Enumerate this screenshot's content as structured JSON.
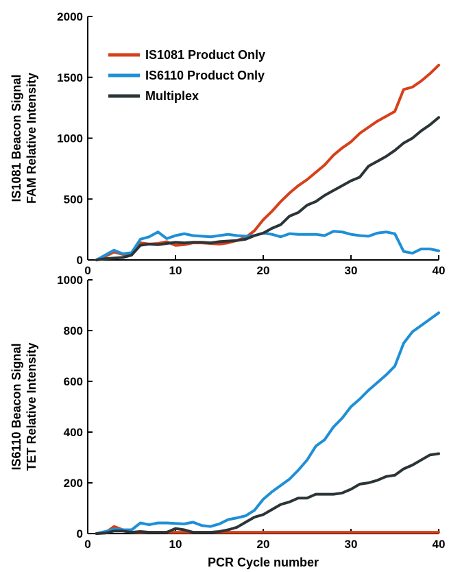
{
  "chart_data": [
    {
      "type": "line",
      "ylabel": [
        "IS1081 Beacon Signal",
        "FAM Relative Intensity"
      ],
      "xlabel": "",
      "xlim": [
        0,
        40
      ],
      "ylim": [
        0,
        2000
      ],
      "xticks": [
        "0",
        "10",
        "20",
        "30",
        "40"
      ],
      "yticks": [
        "0",
        "500",
        "1000",
        "1500",
        "2000"
      ],
      "legend_position": "top-left",
      "legend": [
        "IS1081 Product Only",
        "IS6110 Product Only",
        "Multiplex"
      ],
      "series": [
        {
          "name": "IS1081 Product Only",
          "color": "#d6401a",
          "x": [
            1,
            2,
            3,
            4,
            5,
            6,
            7,
            8,
            9,
            10,
            11,
            12,
            13,
            14,
            15,
            16,
            17,
            18,
            19,
            20,
            21,
            22,
            23,
            24,
            25,
            26,
            27,
            28,
            29,
            30,
            31,
            32,
            33,
            34,
            35,
            36,
            37,
            38,
            39,
            40
          ],
          "y": [
            0,
            30,
            65,
            45,
            50,
            140,
            130,
            135,
            150,
            120,
            125,
            140,
            140,
            135,
            130,
            140,
            160,
            185,
            240,
            330,
            400,
            480,
            550,
            610,
            660,
            720,
            780,
            860,
            920,
            970,
            1040,
            1090,
            1140,
            1180,
            1220,
            1400,
            1420,
            1470,
            1530,
            1600
          ]
        },
        {
          "name": "IS6110 Product Only",
          "color": "#1f8fd6",
          "x": [
            1,
            2,
            3,
            4,
            5,
            6,
            7,
            8,
            9,
            10,
            11,
            12,
            13,
            14,
            15,
            16,
            17,
            18,
            19,
            20,
            21,
            22,
            23,
            24,
            25,
            26,
            27,
            28,
            29,
            30,
            31,
            32,
            33,
            34,
            35,
            36,
            37,
            38,
            39,
            40
          ],
          "y": [
            0,
            40,
            80,
            50,
            60,
            170,
            190,
            230,
            175,
            200,
            215,
            200,
            195,
            190,
            200,
            210,
            200,
            195,
            200,
            220,
            210,
            190,
            215,
            210,
            210,
            210,
            200,
            235,
            230,
            210,
            200,
            195,
            220,
            230,
            215,
            70,
            55,
            90,
            90,
            75
          ]
        },
        {
          "name": "Multiplex",
          "color": "#2b3437",
          "x": [
            1,
            2,
            3,
            4,
            5,
            6,
            7,
            8,
            9,
            10,
            11,
            12,
            13,
            14,
            15,
            16,
            17,
            18,
            19,
            20,
            21,
            22,
            23,
            24,
            25,
            26,
            27,
            28,
            29,
            30,
            31,
            32,
            33,
            34,
            35,
            36,
            37,
            38,
            39,
            40
          ],
          "y": [
            0,
            10,
            15,
            20,
            40,
            120,
            130,
            125,
            135,
            145,
            140,
            145,
            145,
            140,
            150,
            155,
            160,
            170,
            200,
            220,
            260,
            290,
            360,
            390,
            450,
            480,
            530,
            570,
            610,
            650,
            680,
            770,
            810,
            850,
            900,
            960,
            1000,
            1060,
            1110,
            1170
          ]
        }
      ]
    },
    {
      "type": "line",
      "ylabel": [
        "IS6110 Beacon Signal",
        "TET Relative Intensity"
      ],
      "xlabel": "PCR Cycle number",
      "xlim": [
        0,
        40
      ],
      "ylim": [
        0,
        1000
      ],
      "xticks": [
        "0",
        "10",
        "20",
        "30",
        "40"
      ],
      "yticks": [
        "0",
        "200",
        "400",
        "600",
        "800",
        "1000"
      ],
      "series": [
        {
          "name": "IS1081 Product Only",
          "color": "#d6401a",
          "x": [
            1,
            2,
            3,
            4,
            5,
            6,
            7,
            8,
            9,
            10,
            11,
            12,
            13,
            14,
            15,
            16,
            17,
            18,
            19,
            20,
            21,
            22,
            23,
            24,
            25,
            26,
            27,
            28,
            29,
            30,
            31,
            32,
            33,
            34,
            35,
            36,
            37,
            38,
            39,
            40
          ],
          "y": [
            0,
            3,
            28,
            15,
            5,
            5,
            5,
            5,
            5,
            5,
            5,
            5,
            5,
            5,
            5,
            5,
            5,
            5,
            5,
            5,
            5,
            5,
            5,
            5,
            5,
            5,
            5,
            5,
            5,
            5,
            5,
            5,
            5,
            5,
            5,
            5,
            5,
            5,
            5,
            5
          ]
        },
        {
          "name": "IS6110 Product Only",
          "color": "#1f8fd6",
          "x": [
            1,
            2,
            3,
            4,
            5,
            6,
            7,
            8,
            9,
            10,
            11,
            12,
            13,
            14,
            15,
            16,
            17,
            18,
            19,
            20,
            21,
            22,
            23,
            24,
            25,
            26,
            27,
            28,
            29,
            30,
            31,
            32,
            33,
            34,
            35,
            36,
            37,
            38,
            39,
            40
          ],
          "y": [
            0,
            8,
            18,
            15,
            15,
            42,
            35,
            42,
            42,
            40,
            38,
            45,
            32,
            28,
            38,
            55,
            62,
            70,
            92,
            135,
            165,
            190,
            215,
            250,
            290,
            345,
            370,
            420,
            455,
            500,
            530,
            565,
            595,
            625,
            660,
            750,
            795,
            820,
            845,
            870
          ]
        },
        {
          "name": "Multiplex",
          "color": "#2b3437",
          "x": [
            1,
            2,
            3,
            4,
            5,
            6,
            7,
            8,
            9,
            10,
            11,
            12,
            13,
            14,
            15,
            16,
            17,
            18,
            19,
            20,
            21,
            22,
            23,
            24,
            25,
            26,
            27,
            28,
            29,
            30,
            31,
            32,
            33,
            34,
            35,
            36,
            37,
            38,
            39,
            40
          ],
          "y": [
            0,
            2,
            10,
            10,
            5,
            8,
            5,
            5,
            5,
            20,
            15,
            5,
            5,
            5,
            8,
            15,
            25,
            45,
            65,
            75,
            95,
            115,
            125,
            140,
            140,
            155,
            155,
            155,
            160,
            175,
            195,
            200,
            210,
            225,
            230,
            255,
            270,
            290,
            310,
            315
          ]
        }
      ]
    }
  ]
}
